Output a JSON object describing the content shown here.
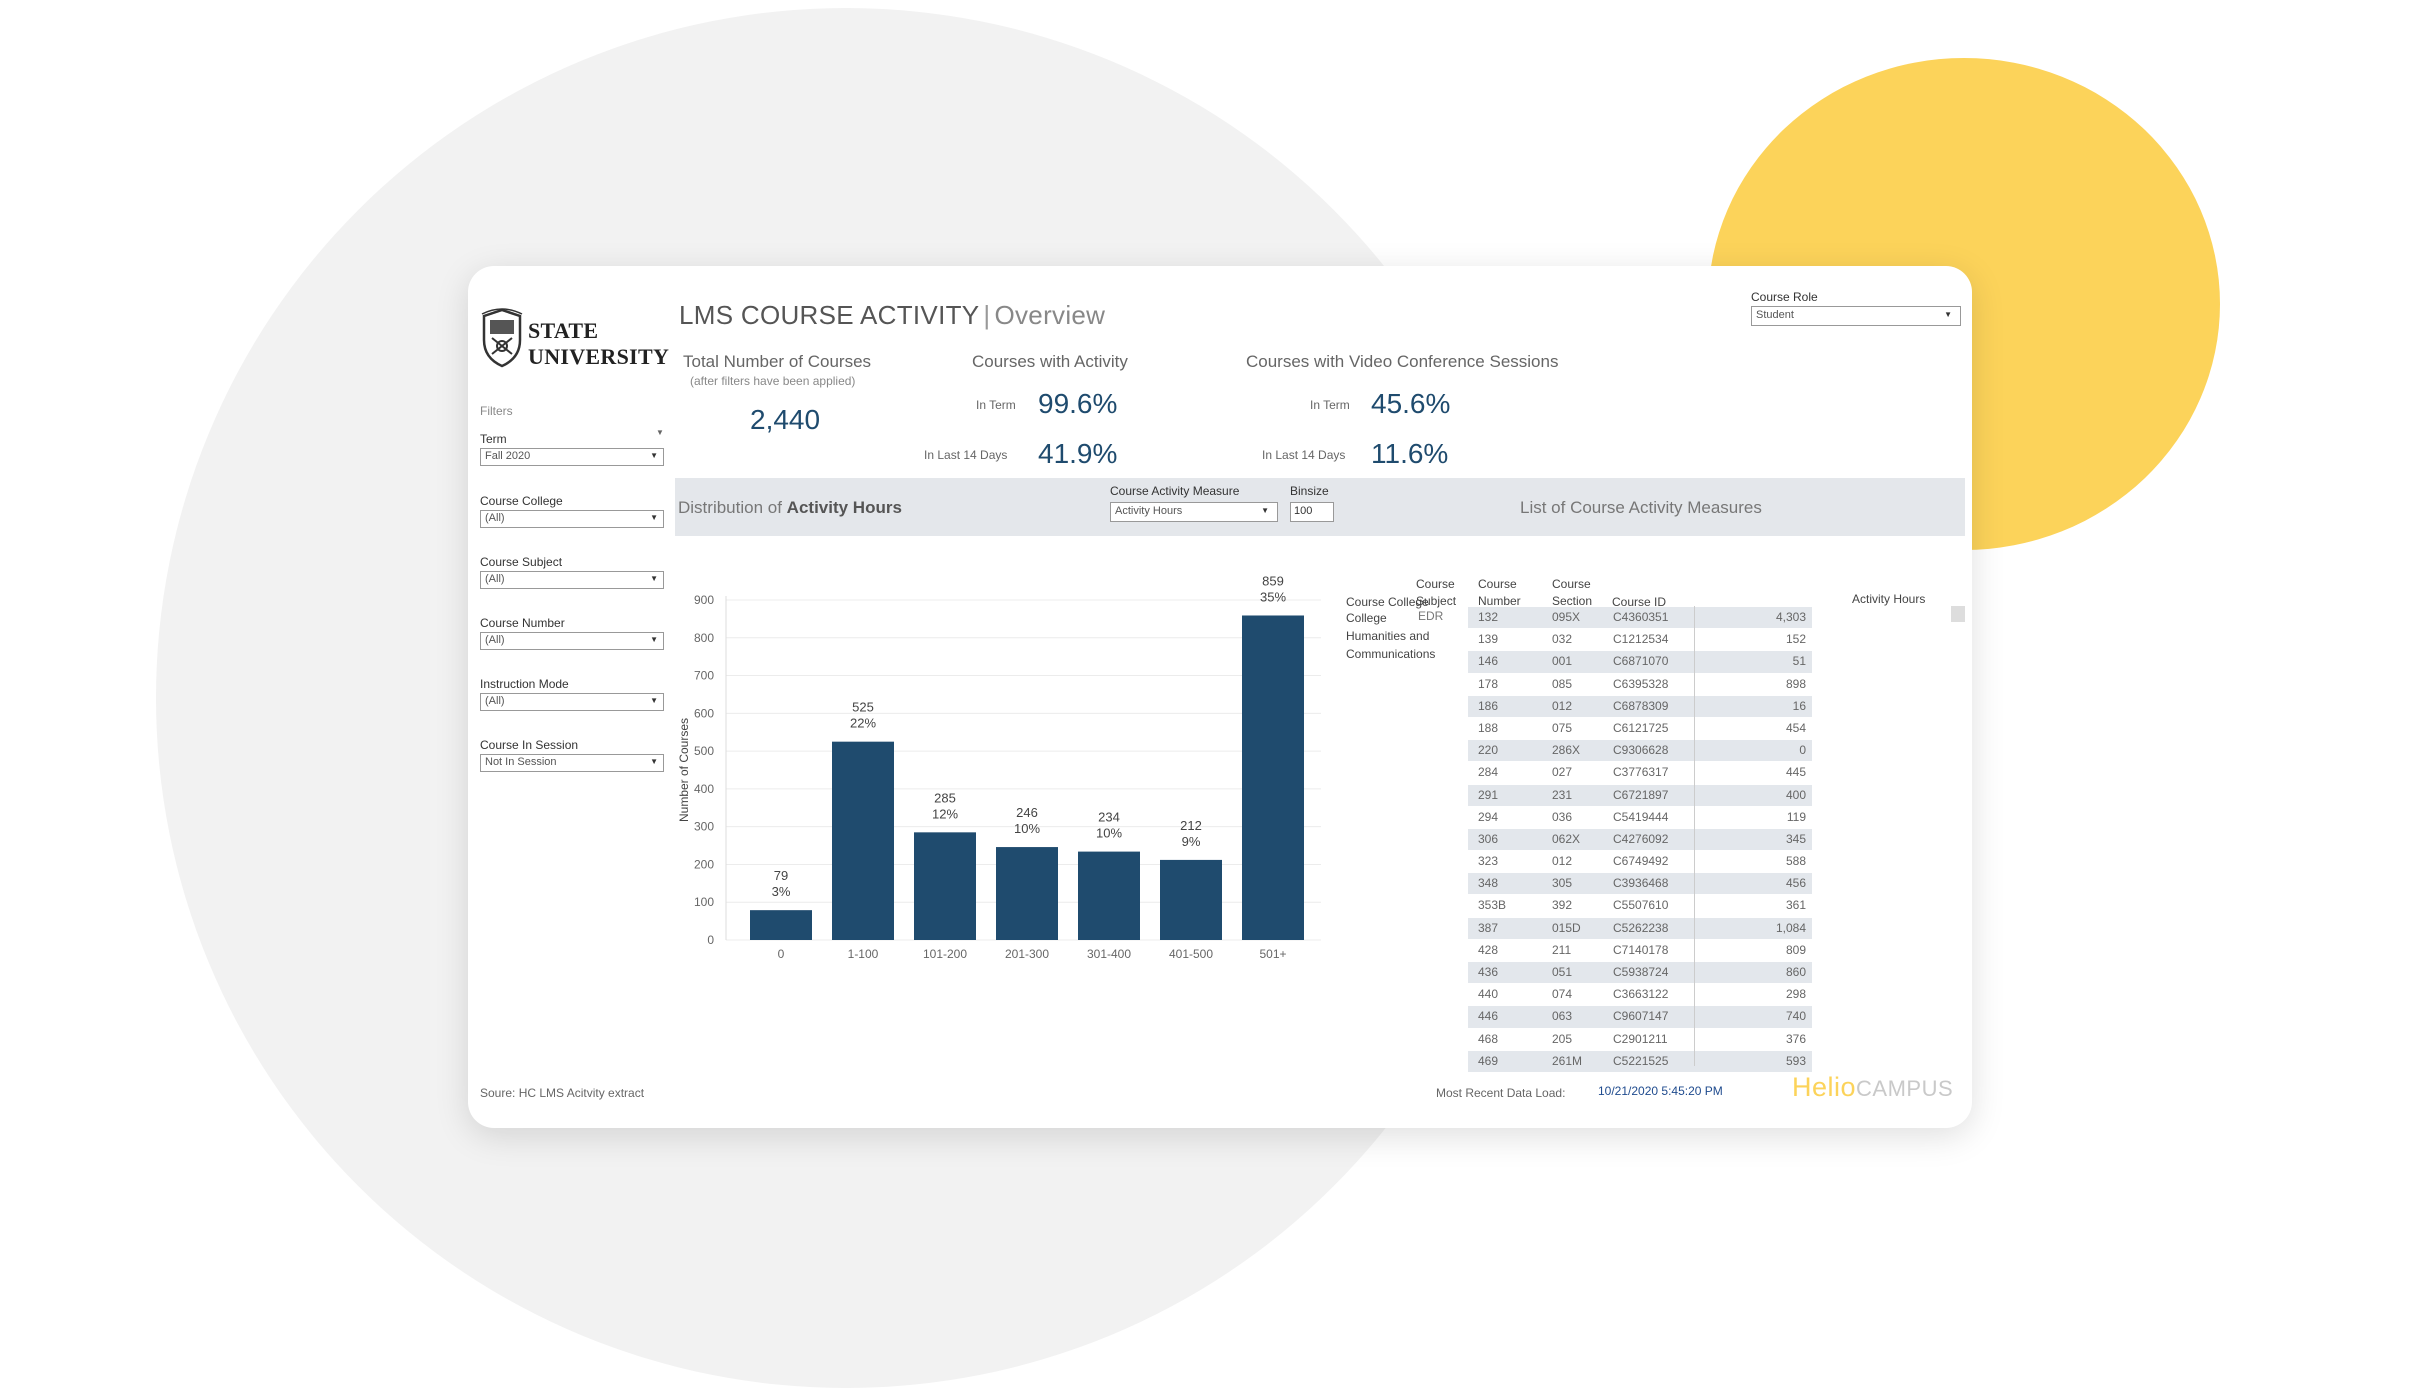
{
  "brand": {
    "logo_line1": "STATE",
    "logo_line2": "UNIVERSITY",
    "helio": "Helio",
    "campus": "CAMPUS"
  },
  "header": {
    "title": "LMS COURSE ACTIVITY",
    "separator": "|",
    "subtitle": "Overview"
  },
  "course_role": {
    "label": "Course Role",
    "value": "Student"
  },
  "filters": {
    "title": "Filters",
    "items": [
      {
        "label": "Term",
        "value": "Fall 2020"
      },
      {
        "label": "Course College",
        "value": "(All)"
      },
      {
        "label": "Course Subject",
        "value": "(All)"
      },
      {
        "label": "Course Number",
        "value": "(All)"
      },
      {
        "label": "Instruction Mode",
        "value": "(All)"
      },
      {
        "label": "Course In Session",
        "value": "Not In Session"
      }
    ]
  },
  "kpis": {
    "total": {
      "label": "Total Number of Courses",
      "note": "(after filters have been applied)",
      "value": "2,440"
    },
    "activity": {
      "label": "Courses with  Activity",
      "in_term_label": "In Term",
      "in_term": "99.6%",
      "last14_label": "In Last 14 Days",
      "last14": "41.9%"
    },
    "video": {
      "label": "Courses with Video Conference Sessions",
      "in_term_label": "In Term",
      "in_term": "45.6%",
      "last14_label": "In Last 14 Days",
      "last14": "11.6%"
    }
  },
  "band": {
    "dist_prefix": "Distribution of ",
    "dist_bold": "Activity Hours",
    "measure_label": "Course Activity Measure",
    "measure_value": "Activity Hours",
    "binsize_label": "Binsize",
    "binsize_value": "100",
    "list_title": "List of Course Activity Measures"
  },
  "chart_data": {
    "type": "bar",
    "ylabel": "Number of Courses",
    "xlabel": "",
    "ylim": [
      0,
      900
    ],
    "yticks": [
      0,
      100,
      200,
      300,
      400,
      500,
      600,
      700,
      800,
      900
    ],
    "categories": [
      "0",
      "1-100",
      "101-200",
      "201-300",
      "301-400",
      "401-500",
      "501+"
    ],
    "values": [
      79,
      525,
      285,
      246,
      234,
      212,
      859
    ],
    "percents": [
      "3%",
      "22%",
      "12%",
      "10%",
      "10%",
      "9%",
      "35%"
    ],
    "bar_color": "#1f4b6e",
    "grid": true
  },
  "table": {
    "headers": {
      "college": "Course College",
      "subject_1": "Course",
      "subject_2": "Subject",
      "number_1": "Course",
      "number_2": "Number",
      "section_1": "Course",
      "section_2": "Section",
      "id": "Course ID",
      "hours": "Activity Hours"
    },
    "college_lines": [
      "College",
      "Humanities and",
      "Communications"
    ],
    "subject": "EDR",
    "rows": [
      {
        "num": "132",
        "sec": "095X",
        "id": "C4360351",
        "hrs": "4,303"
      },
      {
        "num": "139",
        "sec": "032",
        "id": "C1212534",
        "hrs": "152"
      },
      {
        "num": "146",
        "sec": "001",
        "id": "C6871070",
        "hrs": "51"
      },
      {
        "num": "178",
        "sec": "085",
        "id": "C6395328",
        "hrs": "898"
      },
      {
        "num": "186",
        "sec": "012",
        "id": "C6878309",
        "hrs": "16"
      },
      {
        "num": "188",
        "sec": "075",
        "id": "C6121725",
        "hrs": "454"
      },
      {
        "num": "220",
        "sec": "286X",
        "id": "C9306628",
        "hrs": "0"
      },
      {
        "num": "284",
        "sec": "027",
        "id": "C3776317",
        "hrs": "445"
      },
      {
        "num": "291",
        "sec": "231",
        "id": "C6721897",
        "hrs": "400"
      },
      {
        "num": "294",
        "sec": "036",
        "id": "C5419444",
        "hrs": "119"
      },
      {
        "num": "306",
        "sec": "062X",
        "id": "C4276092",
        "hrs": "345"
      },
      {
        "num": "323",
        "sec": "012",
        "id": "C6749492",
        "hrs": "588"
      },
      {
        "num": "348",
        "sec": "305",
        "id": "C3936468",
        "hrs": "456"
      },
      {
        "num": "353B",
        "sec": "392",
        "id": "C5507610",
        "hrs": "361"
      },
      {
        "num": "387",
        "sec": "015D",
        "id": "C5262238",
        "hrs": "1,084"
      },
      {
        "num": "428",
        "sec": "211",
        "id": "C7140178",
        "hrs": "809"
      },
      {
        "num": "436",
        "sec": "051",
        "id": "C5938724",
        "hrs": "860"
      },
      {
        "num": "440",
        "sec": "074",
        "id": "C3663122",
        "hrs": "298"
      },
      {
        "num": "446",
        "sec": "063",
        "id": "C9607147",
        "hrs": "740"
      },
      {
        "num": "468",
        "sec": "205",
        "id": "C2901211",
        "hrs": "376"
      },
      {
        "num": "469",
        "sec": "261M",
        "id": "C5221525",
        "hrs": "593"
      }
    ]
  },
  "footer": {
    "source": "Soure: HC LMS Acitvity extract",
    "load_label": "Most Recent Data Load:",
    "load_value": "10/21/2020 5:45:20 PM"
  },
  "colors": {
    "accent": "#1f4b6e",
    "yellow": "#fcd35a",
    "band": "#e4e7eb"
  }
}
